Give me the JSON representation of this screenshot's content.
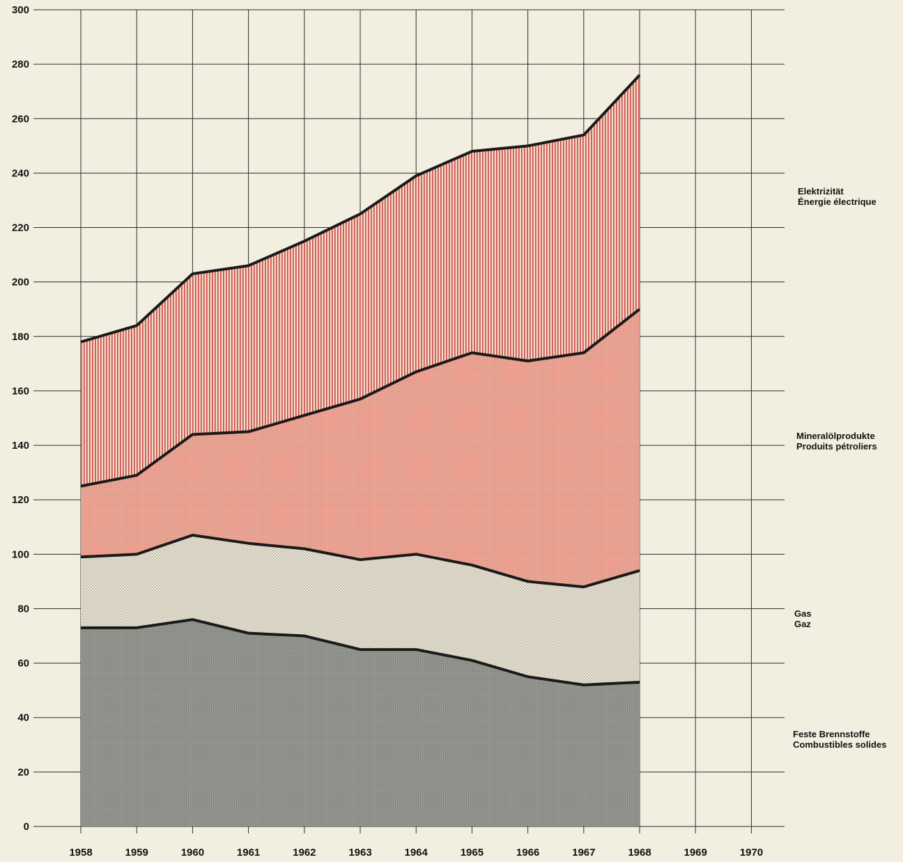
{
  "chart_data": {
    "type": "area",
    "stacked": true,
    "x": [
      "1958",
      "1959",
      "1960",
      "1961",
      "1962",
      "1963",
      "1964",
      "1965",
      "1966",
      "1967",
      "1968",
      "1969",
      "1970"
    ],
    "ylim": [
      0,
      300
    ],
    "yticks": [
      0,
      20,
      40,
      60,
      80,
      100,
      120,
      140,
      160,
      180,
      200,
      220,
      240,
      260,
      280,
      300
    ],
    "grid": true,
    "series": [
      {
        "key": "solid",
        "labels": [
          "Feste Brennstoffe",
          "Combustibles solides"
        ],
        "color": "#8f8f89",
        "cumulative": [
          73,
          73,
          76,
          71,
          70,
          65,
          65,
          61,
          55,
          52,
          53
        ]
      },
      {
        "key": "gas",
        "labels": [
          "Gas",
          "Gaz"
        ],
        "color": "#e7e2cf",
        "cumulative": [
          99,
          100,
          107,
          104,
          102,
          98,
          100,
          96,
          90,
          88,
          94
        ]
      },
      {
        "key": "oil",
        "labels": [
          "Mineralölprodukte",
          "Produits pétroliers"
        ],
        "color": "#e9a191",
        "cumulative": [
          125,
          129,
          144,
          145,
          151,
          157,
          167,
          174,
          171,
          174,
          190
        ]
      },
      {
        "key": "elec",
        "labels": [
          "Elektrizität",
          "Énergie électrique"
        ],
        "color": "#c44a40",
        "cumulative": [
          178,
          184,
          203,
          206,
          215,
          225,
          239,
          248,
          250,
          254,
          276
        ]
      }
    ]
  }
}
